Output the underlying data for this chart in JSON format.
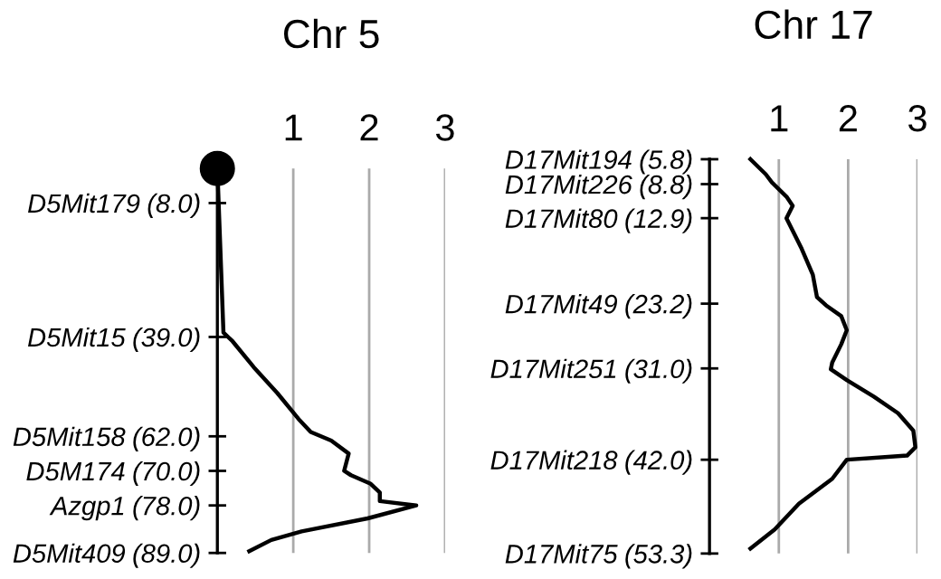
{
  "chart_data": [
    {
      "type": "line",
      "title": "Chr 5",
      "xlim": [
        0,
        3
      ],
      "xticks": [
        1,
        2,
        3
      ],
      "ylim": [
        89.0,
        0
      ],
      "grid": "x",
      "yticks": [
        {
          "value": 8.0,
          "label": "(8.0)"
        },
        {
          "value": 39.0,
          "label": "(39.0)"
        },
        {
          "value": 62.0,
          "label": "(62.0)"
        },
        {
          "value": 70.0,
          "label": "(70.0)"
        },
        {
          "value": 78.0,
          "label": "(78.0)"
        },
        {
          "value": 89.0,
          "label": "(89.0)"
        }
      ],
      "annotations": [
        "D5Mit179",
        "D5Mit15",
        "D5Mit158",
        "D5M174",
        "Azgp1",
        "D5Mit409"
      ],
      "series": [
        {
          "color": "#000000",
          "x": [
            0,
            0.08,
            0.2,
            0.48,
            0.79,
            1.07,
            1.23,
            1.5,
            1.73,
            1.67,
            1.76,
            2.02,
            2.14,
            2.14,
            2.62,
            1.98,
            1.11,
            0.71,
            0.42
          ],
          "values": [
            0,
            38,
            40,
            46,
            52,
            58,
            61,
            63,
            66,
            70,
            71,
            73,
            75,
            77,
            78,
            81,
            84,
            86,
            88.6
          ]
        }
      ]
    },
    {
      "type": "line",
      "title": "Chr 17",
      "xlim": [
        0,
        3
      ],
      "xticks": [
        1,
        2,
        3
      ],
      "ylim": [
        53.3,
        5.8
      ],
      "grid": "x",
      "yticks": [
        {
          "value": 5.8,
          "label": "(5.8)"
        },
        {
          "value": 8.8,
          "label": "(8.8)"
        },
        {
          "value": 12.9,
          "label": "(12.9)"
        },
        {
          "value": 23.2,
          "label": "(23.2)"
        },
        {
          "value": 31.0,
          "label": "(31.0)"
        },
        {
          "value": 42.0,
          "label": "(42.0)"
        },
        {
          "value": 53.3,
          "label": "(53.3)"
        }
      ],
      "annotations": [
        "D17Mit194",
        "D17Mit226",
        "D17Mit80",
        "D17Mit49",
        "D17Mit251",
        "D17Mit218",
        "D17Mit75"
      ],
      "series": [
        {
          "color": "#000000",
          "x": [
            0.59,
            0.81,
            0.9,
            1.11,
            1.2,
            1.11,
            1.33,
            1.49,
            1.55,
            1.68,
            1.9,
            1.98,
            1.9,
            1.77,
            1.75,
            1.98,
            2.37,
            2.72,
            2.94,
            2.97,
            2.85,
            1.98,
            1.77,
            1.29,
            0.94,
            0.59
          ],
          "values": [
            5.8,
            7.6,
            8.6,
            10.3,
            11.4,
            12.9,
            16.6,
            19.7,
            22.4,
            23.4,
            24.7,
            26.4,
            28.1,
            30.3,
            31.1,
            32.4,
            34.4,
            36.4,
            38.5,
            40.5,
            41.5,
            42.0,
            44.3,
            47.3,
            50.4,
            52.7
          ]
        }
      ]
    }
  ]
}
